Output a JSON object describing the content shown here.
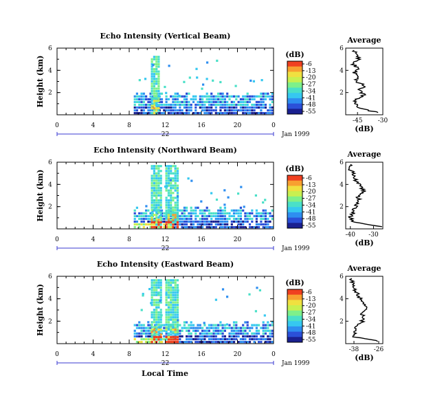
{
  "colors": {
    "scale": [
      "#1a2090",
      "#2b50d8",
      "#2e8ef0",
      "#36c8f0",
      "#4ae0c8",
      "#7ef08a",
      "#c8f050",
      "#f0e040",
      "#f8a030",
      "#f04020"
    ],
    "line": "#000000",
    "axis_blue": "#3a3ad0"
  },
  "xaxis": {
    "ticks": [
      "0",
      "4",
      "8",
      "12",
      "16",
      "20",
      "0"
    ],
    "date_label": "22",
    "month_label": "Jan 1999",
    "xlabel": "Local Time"
  },
  "colorbar": {
    "unit": "(dB)",
    "ticks": [
      "-6",
      "-13",
      "-20",
      "-27",
      "-34",
      "-41",
      "-48",
      "-55"
    ]
  },
  "yaxis": {
    "label": "Height (km)",
    "ticks": [
      "2",
      "4",
      "6"
    ]
  },
  "chart_data": [
    {
      "type": "heatmap",
      "title": "Echo Intensity (Vertical Beam)",
      "ylabel": "Height (km)",
      "xlim_hours": [
        0,
        24
      ],
      "ylim_km": [
        0,
        6
      ],
      "note_values": "Echo intensity in dB; echoes present from ~8.5 h to 24 h below ~2 km, plus a rain column near 10.5-11 h reaching ~5 km",
      "profile": {
        "title": "Average",
        "xlabel": "(dB)",
        "xticks": [
          "-45",
          "-30"
        ],
        "yticks": [
          "2",
          "4",
          "6"
        ],
        "xlim": [
          -52,
          -30
        ],
        "height_km": [
          0.2,
          0.6,
          1.0,
          1.4,
          1.8,
          2.2,
          2.6,
          3.0,
          3.4,
          3.8,
          4.2,
          4.6,
          5.0,
          5.4,
          5.8
        ],
        "db": [
          -33,
          -44,
          -47,
          -46,
          -41,
          -44,
          -40,
          -46,
          -44,
          -47,
          -45,
          -48,
          -44,
          -46,
          -47
        ]
      }
    },
    {
      "type": "heatmap",
      "title": "Echo Intensity (Northward Beam)",
      "ylabel": "Height (km)",
      "xlim_hours": [
        0,
        24
      ],
      "ylim_km": [
        0,
        6
      ],
      "profile": {
        "title": "Average",
        "xlabel": "(dB)",
        "xticks": [
          "-40",
          "-30"
        ],
        "yticks": [
          "2",
          "4",
          "6"
        ],
        "xlim": [
          -42,
          -26
        ],
        "height_km": [
          0.2,
          0.6,
          1.0,
          1.4,
          1.8,
          2.2,
          2.6,
          3.0,
          3.4,
          3.8,
          4.2,
          4.6,
          5.0,
          5.4,
          5.8
        ],
        "db": [
          -27,
          -39,
          -40,
          -39,
          -38,
          -37,
          -36,
          -37,
          -34,
          -36,
          -37,
          -38,
          -39,
          -40,
          -40
        ]
      }
    },
    {
      "type": "heatmap",
      "title": "Echo Intensity (Eastward Beam)",
      "ylabel": "Height (km)",
      "xlim_hours": [
        0,
        24
      ],
      "ylim_km": [
        0,
        6
      ],
      "profile": {
        "title": "Average",
        "xlabel": "(dB)",
        "xticks": [
          "-38",
          "-26"
        ],
        "yticks": [
          "2",
          "4",
          "6"
        ],
        "xlim": [
          -42,
          -24
        ],
        "height_km": [
          0.2,
          0.6,
          1.0,
          1.4,
          1.8,
          2.2,
          2.6,
          3.0,
          3.4,
          3.8,
          4.2,
          4.6,
          5.0,
          5.4,
          5.8
        ],
        "db": [
          -26,
          -38,
          -38,
          -37,
          -35,
          -33,
          -34,
          -33,
          -32,
          -34,
          -36,
          -37,
          -38,
          -39,
          -39
        ]
      }
    }
  ]
}
